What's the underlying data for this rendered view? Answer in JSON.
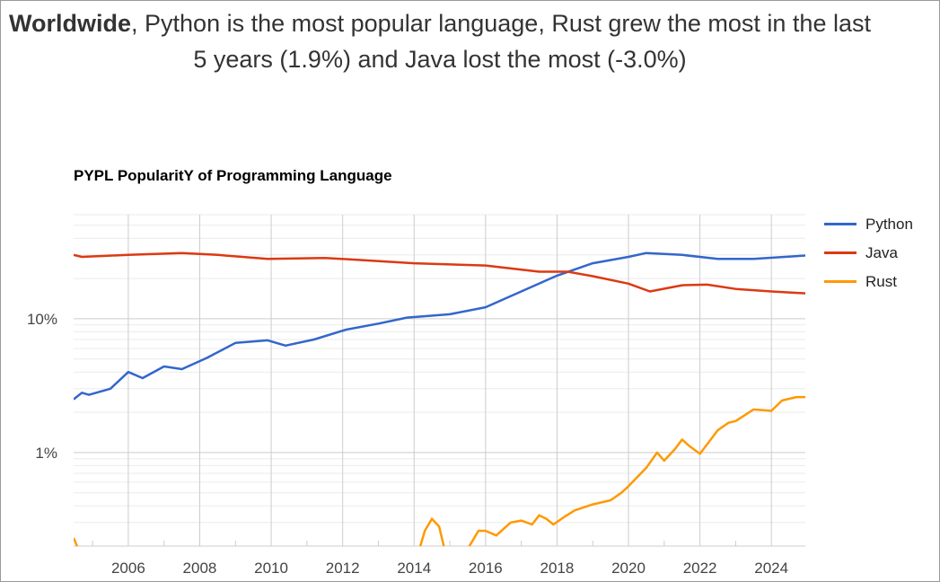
{
  "headline": {
    "bold": "Worldwide",
    "rest": ", Python is the most popular language, Rust grew the most in the last 5 years (1.9%) and Java lost the most (-3.0%)"
  },
  "chart_data": {
    "type": "line",
    "title": "PYPL PopularitY of Programming Language",
    "xlabel": "",
    "ylabel": "",
    "y_scale": "log",
    "ylim": [
      0.2,
      60
    ],
    "xlim": [
      2004.47,
      2024.95
    ],
    "y_tick_labels": [
      {
        "value": 10,
        "label": "10%"
      },
      {
        "value": 1,
        "label": "1%"
      }
    ],
    "y_minor_gridlines": [
      0.2,
      0.3,
      0.4,
      0.5,
      0.6,
      0.7,
      0.8,
      0.9,
      2,
      3,
      4,
      5,
      6,
      7,
      8,
      9,
      20,
      30,
      40,
      50,
      60
    ],
    "x_tick_labels": [
      "2006",
      "2008",
      "2010",
      "2012",
      "2014",
      "2016",
      "2018",
      "2020",
      "2022",
      "2024"
    ],
    "grid": true,
    "legend": "right",
    "series": [
      {
        "name": "Python",
        "color": "#3366cc",
        "x": [
          2004.47,
          2004.7,
          2004.9,
          2005.5,
          2006,
          2006.4,
          2007,
          2007.5,
          2008.2,
          2009,
          2009.9,
          2010.4,
          2011.2,
          2012.1,
          2013,
          2013.8,
          2015,
          2016,
          2017,
          2018,
          2019,
          2020,
          2020.5,
          2021.5,
          2022.5,
          2023.5,
          2024.95
        ],
        "y": [
          2.5,
          2.8,
          2.7,
          3.0,
          4.0,
          3.6,
          4.4,
          4.2,
          5.1,
          6.6,
          6.9,
          6.3,
          7.0,
          8.3,
          9.2,
          10.2,
          10.8,
          12.2,
          16,
          21,
          26,
          29,
          31,
          30,
          28,
          28,
          29.7
        ]
      },
      {
        "name": "Java",
        "color": "#dc3912",
        "x": [
          2004.47,
          2004.7,
          2006,
          2007.5,
          2008.5,
          2009.9,
          2011.5,
          2012.5,
          2014,
          2016,
          2017.5,
          2018.3,
          2019,
          2020,
          2020.6,
          2021.5,
          2022.2,
          2023,
          2024,
          2024.95
        ],
        "y": [
          30,
          29,
          30,
          31,
          30,
          28,
          28.5,
          27.5,
          26,
          25,
          22.5,
          22.5,
          20.8,
          18.3,
          16,
          17.8,
          18,
          16.7,
          16,
          15.5
        ]
      },
      {
        "name": "Rust",
        "color": "#ff9900",
        "x": [
          2004.47,
          2004.6,
          null,
          2014.15,
          2014.3,
          2014.5,
          2014.7,
          2014.85,
          null,
          2015.5,
          2015.8,
          2016,
          2016.3,
          2016.7,
          2017,
          2017.3,
          2017.5,
          2017.7,
          2017.9,
          2018.2,
          2018.5,
          2019,
          2019.5,
          2019.8,
          2020,
          2020.5,
          2020.8,
          2021,
          2021.3,
          2021.5,
          2021.7,
          2022,
          2022.5,
          2022.8,
          2023,
          2023.5,
          2024,
          2024.3,
          2024.7,
          2024.95
        ],
        "y": [
          0.23,
          0.19,
          null,
          0.19,
          0.26,
          0.32,
          0.28,
          0.19,
          null,
          0.19,
          0.26,
          0.26,
          0.24,
          0.3,
          0.31,
          0.29,
          0.34,
          0.32,
          0.29,
          0.33,
          0.37,
          0.41,
          0.44,
          0.5,
          0.56,
          0.77,
          1.0,
          0.87,
          1.06,
          1.25,
          1.12,
          0.98,
          1.47,
          1.67,
          1.72,
          2.1,
          2.05,
          2.45,
          2.6,
          2.6
        ]
      }
    ]
  }
}
